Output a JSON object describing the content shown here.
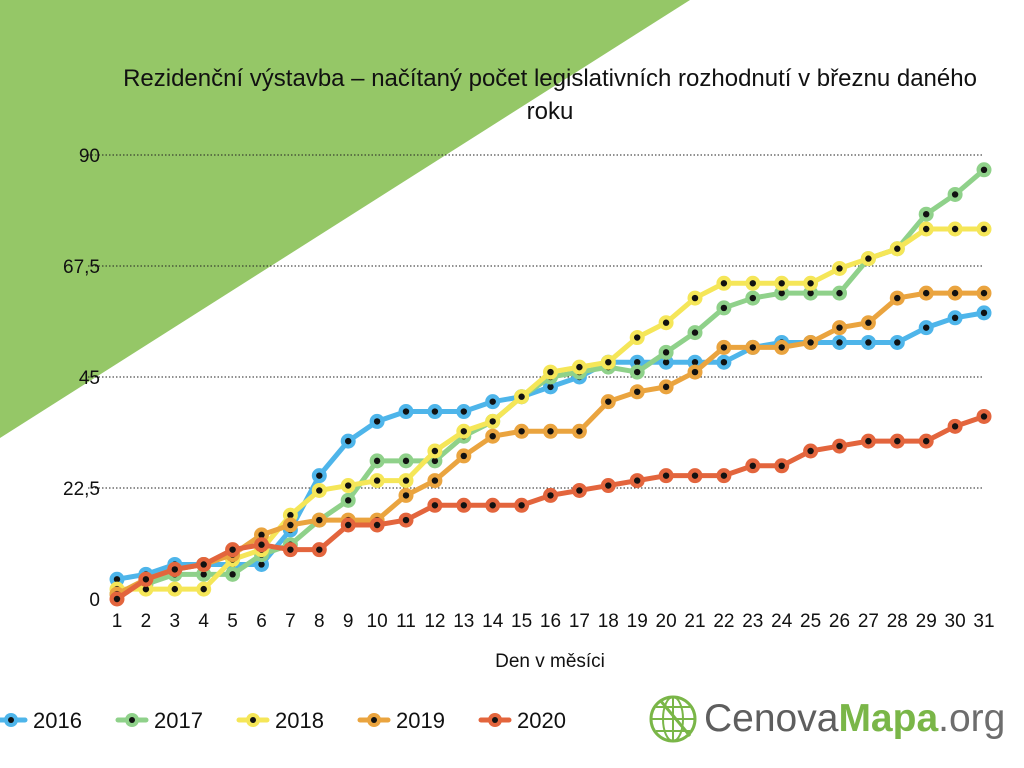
{
  "title": "Rezidenční výstavba – načítaný počet legislativních rozhodnutí v březnu daného roku",
  "logo": {
    "part1": "Cenova",
    "part2": "Mapa",
    "part3": ".org"
  },
  "colors": {
    "background_triangle": "#95c767",
    "grid": "#222222",
    "logo_green": "#7ab648"
  },
  "chart_data": {
    "type": "line",
    "title": "Rezidenční výstavba – načítaný počet legislativních rozhodnutí v březnu daného roku",
    "xlabel": "Den v měsíci",
    "ylabel": "",
    "x": [
      1,
      2,
      3,
      4,
      5,
      6,
      7,
      8,
      9,
      10,
      11,
      12,
      13,
      14,
      15,
      16,
      17,
      18,
      19,
      20,
      21,
      22,
      23,
      24,
      25,
      26,
      27,
      28,
      29,
      30,
      31
    ],
    "ylim": [
      0,
      90
    ],
    "yticks": [
      0,
      22.5,
      45,
      67.5,
      90
    ],
    "ytick_labels": [
      "0",
      "22,5",
      "45",
      "67,5",
      "90"
    ],
    "grid": "horizontal dotted",
    "legend_position": "bottom-left",
    "series": [
      {
        "name": "2016",
        "color": "#4eb5ea",
        "values": [
          4,
          5,
          7,
          7,
          7,
          7,
          14,
          25,
          32,
          36,
          38,
          38,
          38,
          40,
          41,
          43,
          45,
          48,
          48,
          48,
          48,
          48,
          51,
          52,
          52,
          52,
          52,
          52,
          55,
          57,
          58
        ]
      },
      {
        "name": "2017",
        "color": "#8fd18a",
        "values": [
          1,
          3,
          5,
          5,
          5,
          9,
          11,
          16,
          20,
          28,
          28,
          28,
          33,
          36,
          41,
          45,
          46,
          47,
          46,
          50,
          54,
          59,
          61,
          62,
          62,
          62,
          69,
          71,
          78,
          82,
          87
        ]
      },
      {
        "name": "2018",
        "color": "#f5e658",
        "values": [
          2,
          2,
          2,
          2,
          8,
          10,
          17,
          22,
          23,
          24,
          24,
          30,
          34,
          36,
          41,
          46,
          47,
          48,
          53,
          56,
          61,
          64,
          64,
          64,
          64,
          67,
          69,
          71,
          75,
          75,
          75
        ]
      },
      {
        "name": "2019",
        "color": "#eaa43f",
        "values": [
          1,
          4,
          6,
          7,
          9,
          13,
          15,
          16,
          16,
          16,
          21,
          24,
          29,
          33,
          34,
          34,
          34,
          40,
          42,
          43,
          46,
          51,
          51,
          51,
          52,
          55,
          56,
          61,
          62,
          62,
          62
        ]
      },
      {
        "name": "2020",
        "color": "#e3653d",
        "values": [
          0,
          4,
          6,
          7,
          10,
          11,
          10,
          10,
          15,
          15,
          16,
          19,
          19,
          19,
          19,
          21,
          22,
          23,
          24,
          25,
          25,
          25,
          27,
          27,
          30,
          31,
          32,
          32,
          32,
          35,
          37
        ]
      }
    ]
  }
}
